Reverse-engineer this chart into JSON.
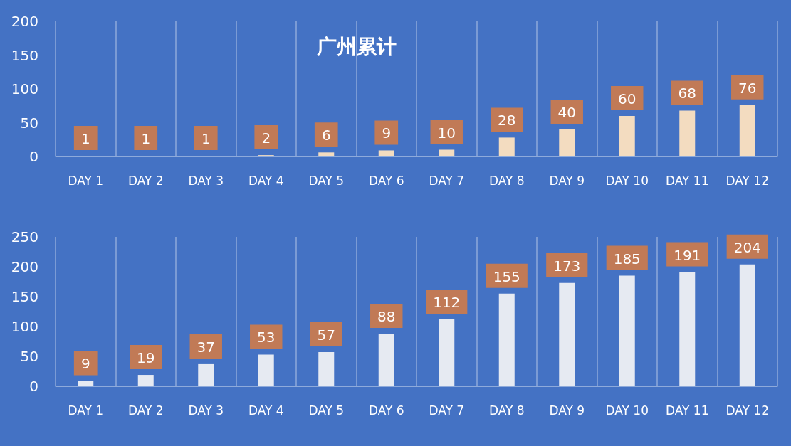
{
  "chart_data": [
    {
      "type": "bar",
      "title": "广州累计",
      "categories": [
        "DAY 1",
        "DAY 2",
        "DAY 3",
        "DAY 4",
        "DAY 5",
        "DAY 6",
        "DAY 7",
        "DAY 8",
        "DAY 9",
        "DAY 10",
        "DAY 11",
        "DAY 12"
      ],
      "values": [
        1,
        1,
        1,
        2,
        6,
        9,
        10,
        28,
        40,
        60,
        68,
        76
      ],
      "color": "#f3dcc0",
      "ylim": [
        0,
        200
      ],
      "yticks": [
        0,
        50,
        100,
        150,
        200
      ],
      "grid": "x",
      "data_labels": true
    },
    {
      "type": "bar",
      "categories": [
        "DAY 1",
        "DAY 2",
        "DAY 3",
        "DAY 4",
        "DAY 5",
        "DAY 6",
        "DAY 7",
        "DAY 8",
        "DAY 9",
        "DAY 10",
        "DAY 11",
        "DAY 12"
      ],
      "values": [
        9,
        19,
        37,
        53,
        57,
        88,
        112,
        155,
        173,
        185,
        191,
        204
      ],
      "color": "#e6eaf2",
      "ylim": [
        0,
        250
      ],
      "yticks": [
        0,
        50,
        100,
        150,
        200,
        250
      ],
      "grid": "x",
      "data_labels": true
    }
  ]
}
